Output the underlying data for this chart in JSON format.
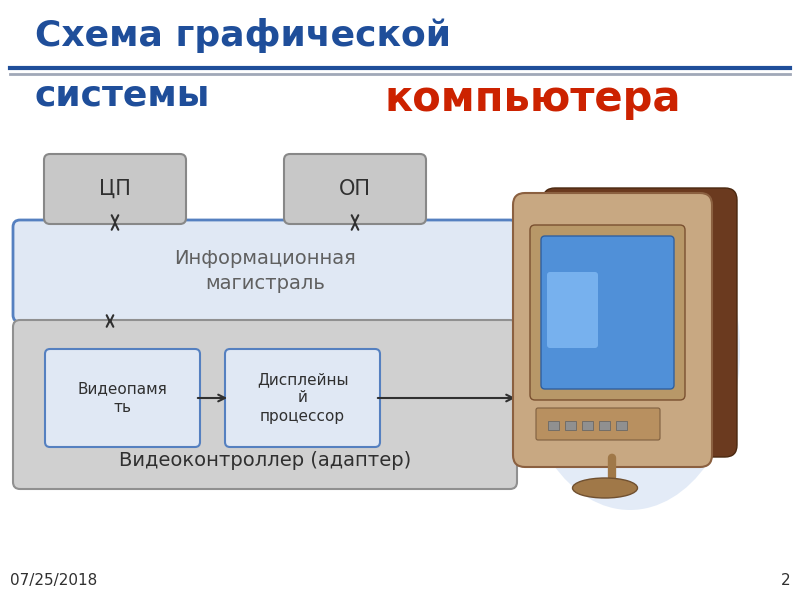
{
  "title_line1": "Схема графической",
  "title_line2": "системы",
  "title_suffix": "компьютера",
  "title_color": "#1F4E9A",
  "title_fontsize": 26,
  "suffix_fontsize": 30,
  "bg_color": "#FFFFFF",
  "date_text": "07/25/2018",
  "page_num": "2",
  "box_cp_label": "ЦП",
  "box_op_label": "ОП",
  "box_mag_label": "Информационная\nмагистраль",
  "box_vid_label": "Видеопамя\nть",
  "box_disp_label": "Дисплейны\nй\nпроцессор",
  "box_adapter_label": "Видеоконтроллер (адаптер)",
  "small_box_color": "#C8C8C8",
  "small_box_edge": "#888888",
  "mag_box_color": "#E0E8F4",
  "mag_box_edge": "#5580C0",
  "adapter_box_color": "#D0D0D0",
  "adapter_box_edge": "#909090",
  "inner_box_color": "#E0E8F4",
  "inner_box_edge": "#5580C0",
  "arrow_color": "#303030",
  "line_color1": "#1F4E9A",
  "line_color2": "#A0A8B8"
}
